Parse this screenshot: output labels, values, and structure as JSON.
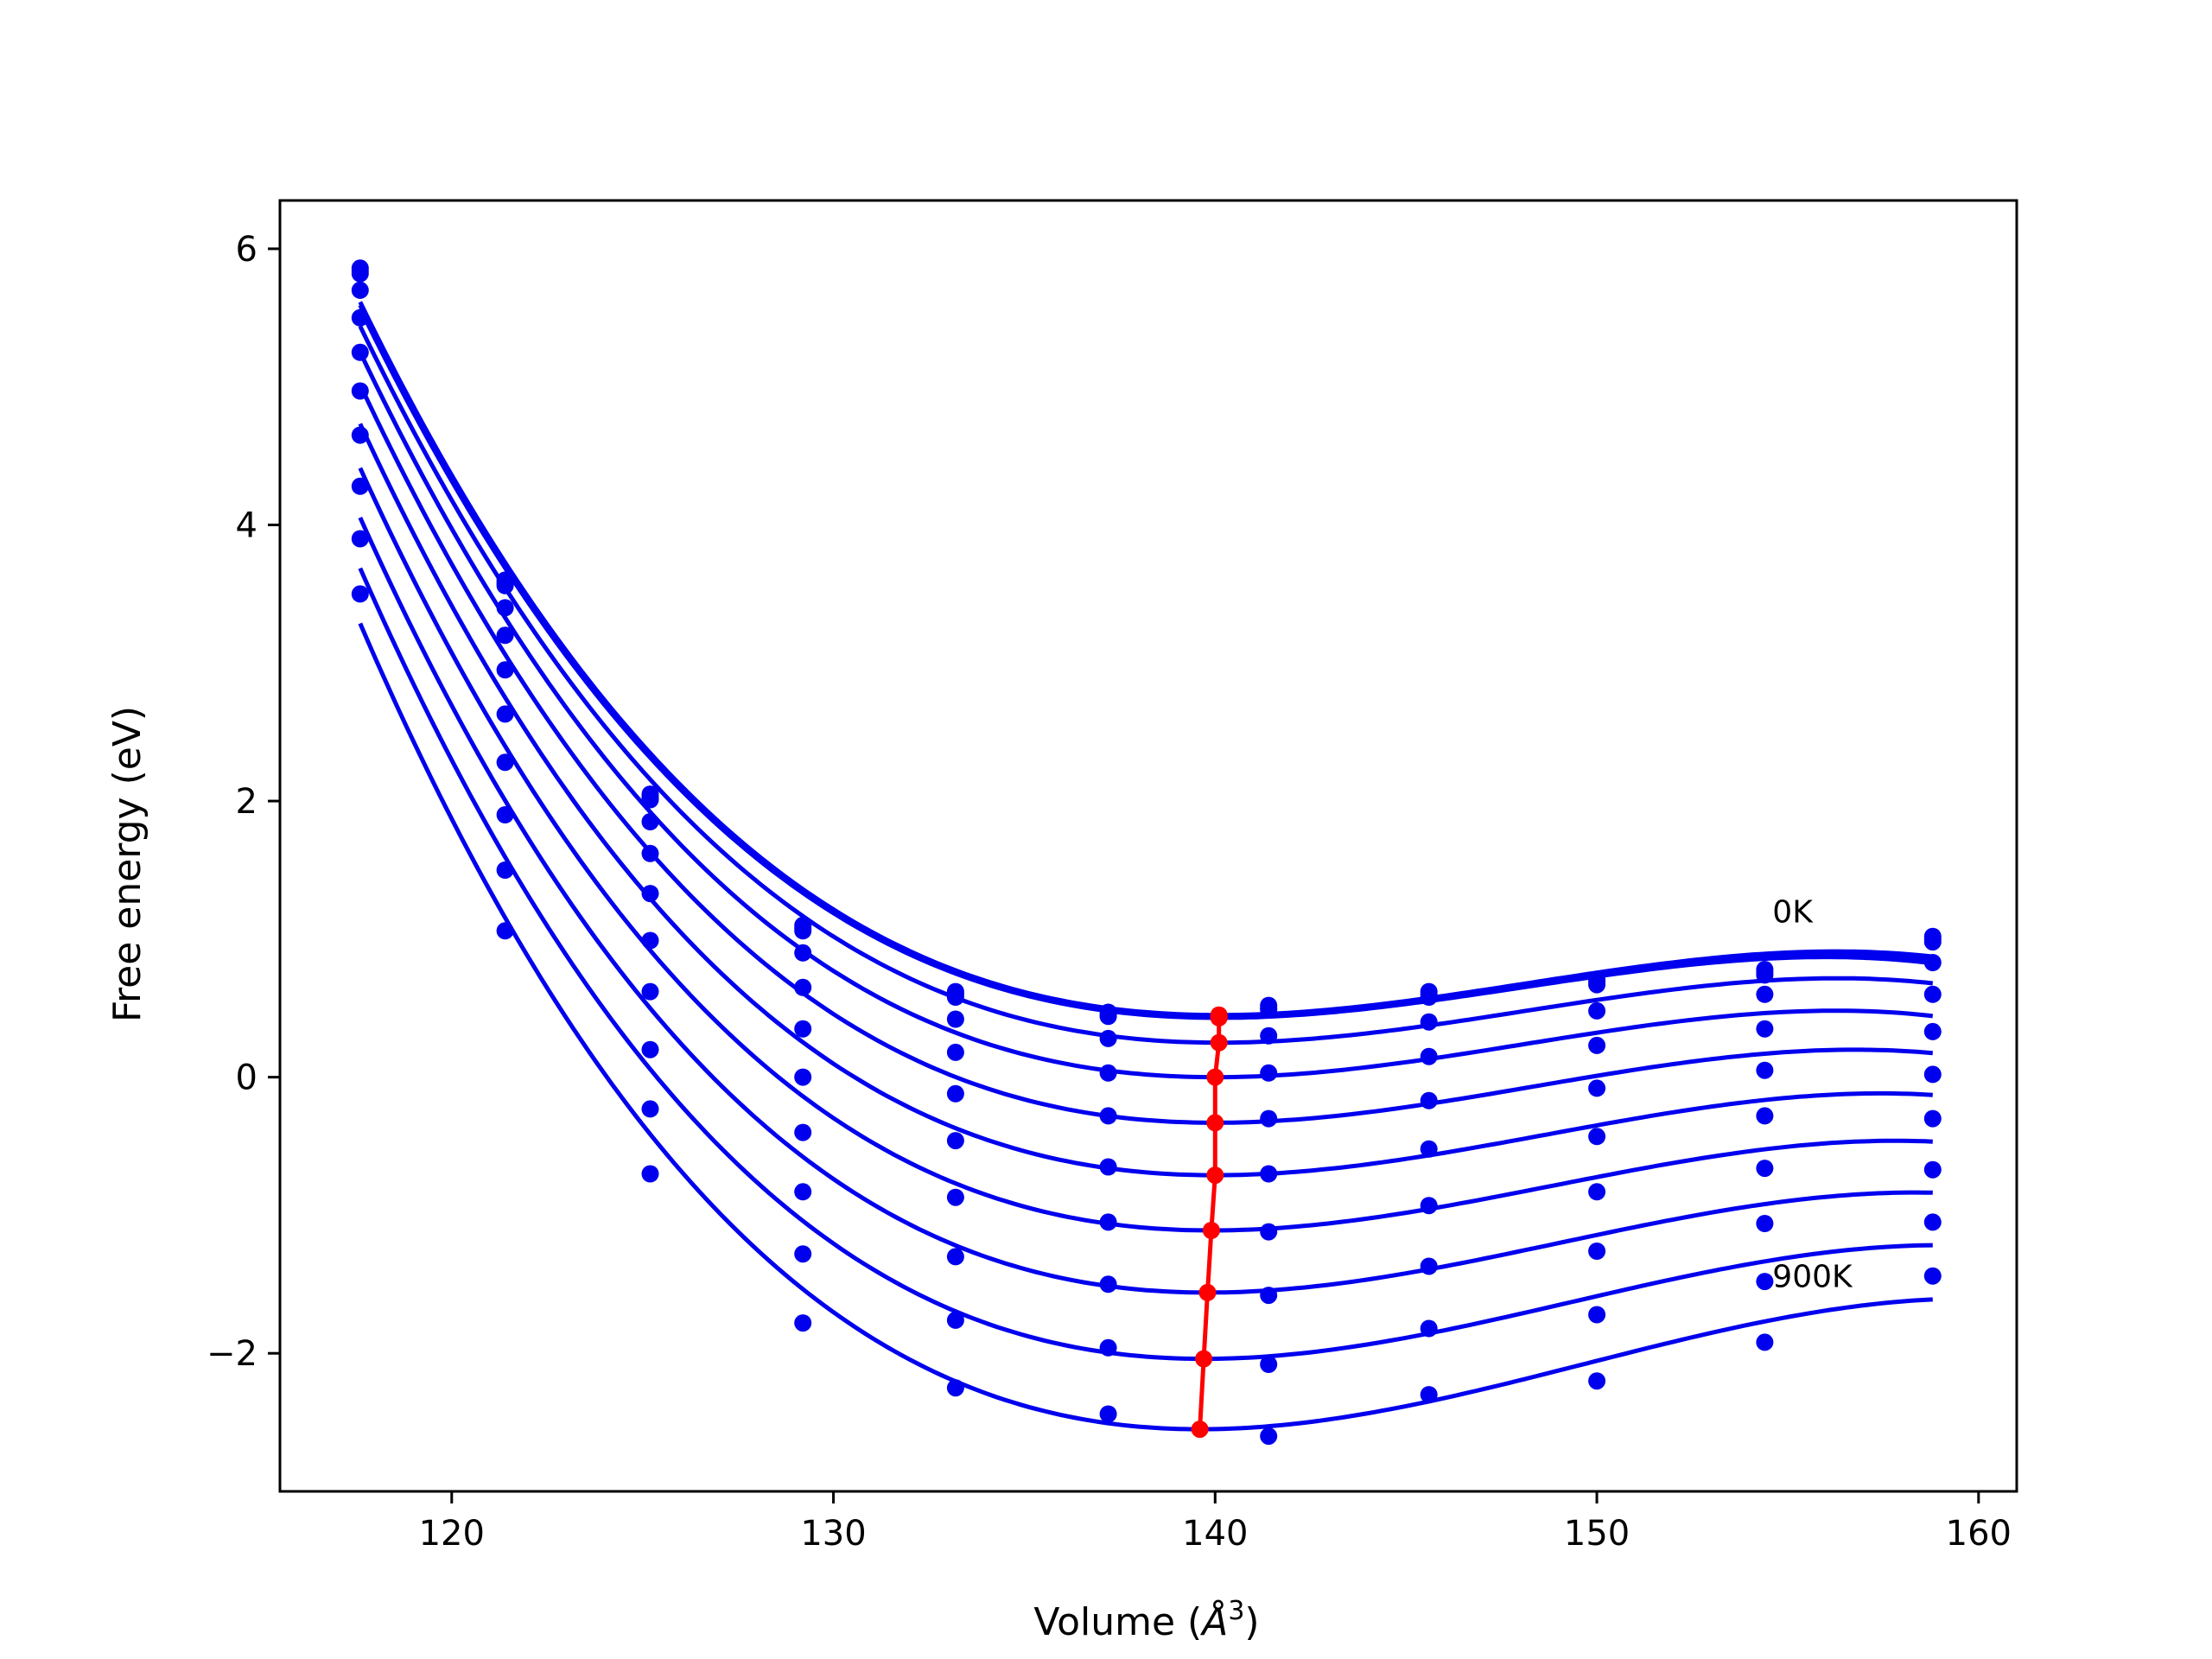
{
  "chart_data": {
    "type": "line",
    "title": "",
    "xlabel_main": "Volume (",
    "xlabel_unit": "Å",
    "xlabel_exp": "3",
    "xlabel_close": ")",
    "ylabel": "Free energy (eV)",
    "xlim": [
      115.5,
      161
    ],
    "ylim": [
      -3.0,
      6.35
    ],
    "xticks": [
      120,
      130,
      140,
      150,
      160
    ],
    "yticks": [
      -2,
      0,
      2,
      4,
      6
    ],
    "ytick_labels": [
      "−2",
      "0",
      "2",
      "4",
      "6"
    ],
    "grid": false,
    "line_color": "#0000ee",
    "equilibrium_color": "#ff0000",
    "annotations": [
      {
        "text": "0K",
        "x": 154.6,
        "y": 1.12
      },
      {
        "text": "900K",
        "x": 154.6,
        "y": -1.52
      }
    ],
    "volumes": [
      117.6,
      121.4,
      125.2,
      129.2,
      133.2,
      137.2,
      141.4,
      145.6,
      150.0,
      154.4,
      158.8
    ],
    "series": [
      {
        "E0": 0.45,
        "V0": 140.1,
        "points": [
          5.86,
          3.6,
          2.05,
          1.1,
          0.62,
          0.47,
          0.52,
          0.62,
          0.71,
          0.78,
          1.02
        ]
      },
      {
        "E0": 0.44,
        "V0": 140.1,
        "points": [
          5.84,
          3.58,
          2.03,
          1.08,
          0.6,
          0.45,
          0.5,
          0.6,
          0.69,
          0.76,
          1.0
        ]
      },
      {
        "E0": 0.43,
        "V0": 140.1,
        "points": [
          5.82,
          3.56,
          2.01,
          1.06,
          0.58,
          0.44,
          0.49,
          0.58,
          0.67,
          0.74,
          0.98
        ]
      },
      {
        "E0": 0.25,
        "V0": 140.1,
        "points": [
          5.7,
          3.4,
          1.85,
          0.9,
          0.42,
          0.28,
          0.3,
          0.4,
          0.48,
          0.6,
          0.83
        ]
      },
      {
        "E0": 0.0,
        "V0": 140.0,
        "points": [
          5.5,
          3.2,
          1.62,
          0.65,
          0.18,
          0.03,
          0.03,
          0.15,
          0.23,
          0.35,
          0.6
        ]
      },
      {
        "E0": -0.33,
        "V0": 140.0,
        "points": [
          5.25,
          2.95,
          1.33,
          0.35,
          -0.12,
          -0.28,
          -0.3,
          -0.17,
          -0.08,
          0.05,
          0.33
        ]
      },
      {
        "E0": -0.71,
        "V0": 140.0,
        "points": [
          4.97,
          2.63,
          0.99,
          0.0,
          -0.46,
          -0.65,
          -0.7,
          -0.52,
          -0.43,
          -0.28,
          0.02
        ]
      },
      {
        "E0": -1.11,
        "V0": 139.9,
        "points": [
          4.65,
          2.28,
          0.62,
          -0.4,
          -0.87,
          -1.05,
          -1.12,
          -0.93,
          -0.83,
          -0.66,
          -0.3
        ]
      },
      {
        "E0": -1.56,
        "V0": 139.8,
        "points": [
          4.28,
          1.9,
          0.2,
          -0.83,
          -1.3,
          -1.5,
          -1.58,
          -1.37,
          -1.26,
          -1.06,
          -0.67
        ]
      },
      {
        "E0": -2.04,
        "V0": 139.7,
        "points": [
          3.9,
          1.5,
          -0.23,
          -1.28,
          -1.76,
          -1.96,
          -2.08,
          -1.82,
          -1.72,
          -1.48,
          -1.05
        ]
      },
      {
        "E0": -2.55,
        "V0": 139.6,
        "points": [
          3.5,
          1.06,
          -0.7,
          -1.78,
          -2.25,
          -2.44,
          -2.6,
          -2.3,
          -2.2,
          -1.92,
          -1.44
        ]
      }
    ]
  }
}
